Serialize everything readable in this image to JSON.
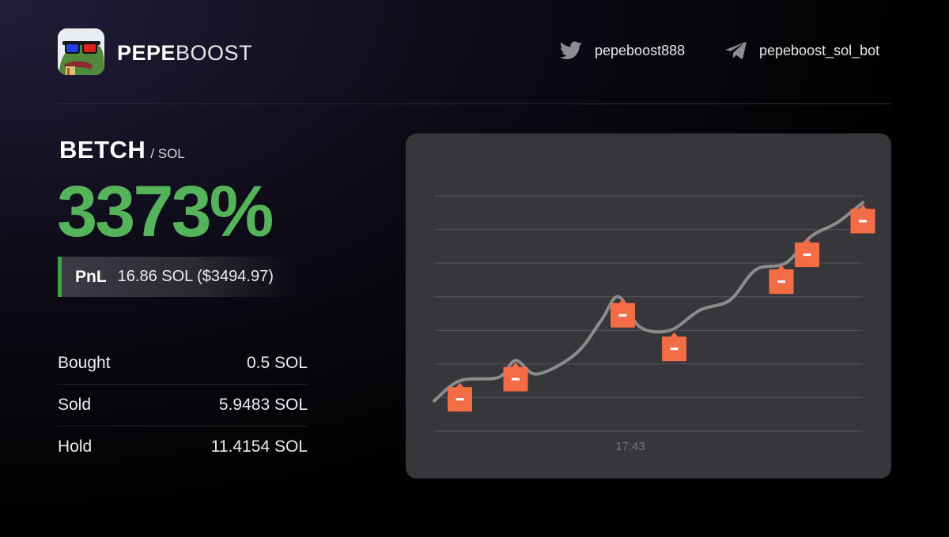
{
  "brand": {
    "name_bold": "PEPE",
    "name_light": "BOOST"
  },
  "social": {
    "twitter": {
      "icon": "twitter-icon",
      "handle": "pepeboost888"
    },
    "telegram": {
      "icon": "telegram-icon",
      "handle": "pepeboost_sol_bot"
    }
  },
  "trade": {
    "symbol": "BETCH",
    "quote": "/ SOL",
    "pnl_percent": "3373%",
    "pnl_label": "PnL",
    "pnl_value": "16.86 SOL ($3494.97)"
  },
  "stats": [
    {
      "label": "Bought",
      "value": "0.5 SOL"
    },
    {
      "label": "Sold",
      "value": "5.9483 SOL"
    },
    {
      "label": "Hold",
      "value": "11.4154 SOL"
    }
  ],
  "colors": {
    "accent_green": "#55b45a",
    "chart_bg": "#36363b",
    "sell_marker": "#f26d45",
    "line": "#8c8c8c"
  },
  "chart_data": {
    "type": "line",
    "x_tick_labels": [
      "17:43"
    ],
    "grid": true,
    "ylim": [
      0,
      7
    ],
    "series": [
      {
        "values": [
          {
            "t": 0.0,
            "v": 0.9
          },
          {
            "t": 0.06,
            "v": 1.5
          },
          {
            "t": 0.15,
            "v": 1.6
          },
          {
            "t": 0.19,
            "v": 2.1
          },
          {
            "t": 0.24,
            "v": 1.7
          },
          {
            "t": 0.33,
            "v": 2.3
          },
          {
            "t": 0.39,
            "v": 3.3
          },
          {
            "t": 0.43,
            "v": 4.0
          },
          {
            "t": 0.48,
            "v": 3.1
          },
          {
            "t": 0.55,
            "v": 3.0
          },
          {
            "t": 0.62,
            "v": 3.6
          },
          {
            "t": 0.69,
            "v": 3.9
          },
          {
            "t": 0.75,
            "v": 4.8
          },
          {
            "t": 0.82,
            "v": 5.0
          },
          {
            "t": 0.88,
            "v": 5.8
          },
          {
            "t": 0.94,
            "v": 6.2
          },
          {
            "t": 1.0,
            "v": 6.8
          }
        ]
      }
    ],
    "sell_markers": [
      {
        "t": 0.06,
        "v": 1.5
      },
      {
        "t": 0.19,
        "v": 2.1
      },
      {
        "t": 0.44,
        "v": 4.0
      },
      {
        "t": 0.56,
        "v": 3.0
      },
      {
        "t": 0.81,
        "v": 5.0
      },
      {
        "t": 0.87,
        "v": 5.8
      },
      {
        "t": 1.0,
        "v": 6.8
      }
    ]
  }
}
